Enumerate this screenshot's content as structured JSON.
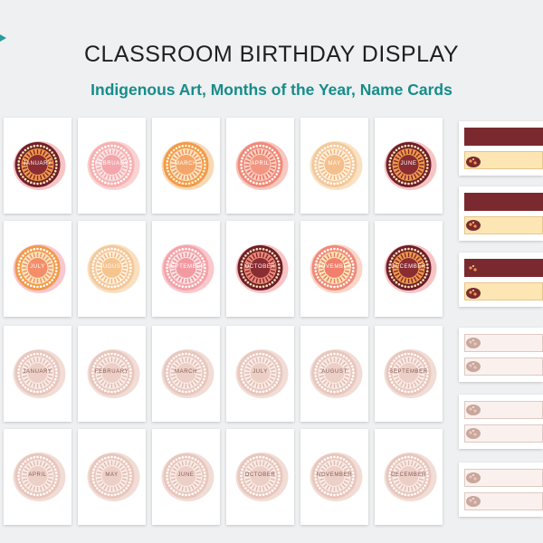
{
  "header": {
    "title": "CLASSROOM BIRTHDAY DISPLAY",
    "subtitle": "Indigenous Art, Months of the Year, Name Cards"
  },
  "colors": {
    "accent": "#168c8a",
    "maroon": "#7a2a2e",
    "cream": "#fde6b4",
    "pink": "#f7c4c4",
    "peach": "#f5c89a",
    "coral": "#f08a78",
    "orange": "#f29a4a",
    "beige": "#f0d5cc"
  },
  "month_cards": {
    "set1_row1": [
      "JANUARY",
      "FEBRUARY",
      "MARCH",
      "APRIL",
      "MAY",
      "JUNE"
    ],
    "set1_row2": [
      "JULY",
      "AUGUST",
      "SEPTEMBER",
      "OCTOBER",
      "NOVEMBER",
      "DECEMBER"
    ],
    "set2_row1": [
      "JANUARY",
      "FEBRUARY",
      "MARCH",
      "JULY",
      "AUGUST",
      "SEPTEMBER"
    ],
    "set2_row2": [
      "APRIL",
      "MAY",
      "JUNE",
      "OCTOBER",
      "NOVEMBER",
      "DECEMBER"
    ]
  },
  "name_cards": {
    "icons": [
      "goanna-icon",
      "turtle-icon",
      "kangaroo-icon",
      "dancers-icon",
      "echidna-icon",
      "platypus-icon"
    ]
  }
}
